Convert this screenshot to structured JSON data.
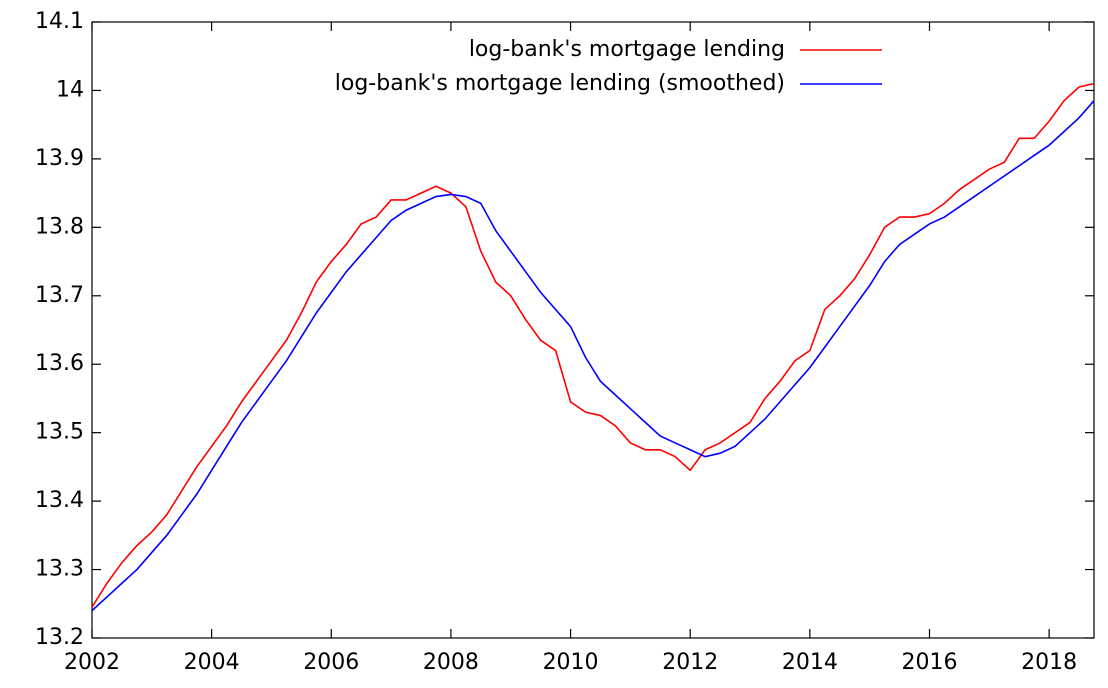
{
  "chart_data": {
    "type": "line",
    "x": [
      2002,
      2002.25,
      2002.5,
      2002.75,
      2003,
      2003.25,
      2003.5,
      2003.75,
      2004,
      2004.25,
      2004.5,
      2004.75,
      2005,
      2005.25,
      2005.5,
      2005.75,
      2006,
      2006.25,
      2006.5,
      2006.75,
      2007,
      2007.25,
      2007.5,
      2007.75,
      2008,
      2008.25,
      2008.5,
      2008.75,
      2009,
      2009.25,
      2009.5,
      2009.75,
      2010,
      2010.25,
      2010.5,
      2010.75,
      2011,
      2011.25,
      2011.5,
      2011.75,
      2012,
      2012.25,
      2012.5,
      2012.75,
      2013,
      2013.25,
      2013.5,
      2013.75,
      2014,
      2014.25,
      2014.5,
      2014.75,
      2015,
      2015.25,
      2015.5,
      2015.75,
      2016,
      2016.25,
      2016.5,
      2016.75,
      2017,
      2017.25,
      2017.5,
      2017.75,
      2018,
      2018.25,
      2018.5,
      2018.75
    ],
    "series": [
      {
        "name": "log-bank's mortgage lending",
        "color": "#ff0000",
        "values": [
          13.245,
          13.28,
          13.31,
          13.335,
          13.355,
          13.38,
          13.415,
          13.45,
          13.48,
          13.51,
          13.545,
          13.575,
          13.605,
          13.635,
          13.675,
          13.72,
          13.75,
          13.775,
          13.805,
          13.815,
          13.84,
          13.84,
          13.85,
          13.86,
          13.85,
          13.83,
          13.765,
          13.72,
          13.7,
          13.665,
          13.635,
          13.62,
          13.545,
          13.53,
          13.525,
          13.51,
          13.485,
          13.475,
          13.475,
          13.465,
          13.445,
          13.475,
          13.485,
          13.5,
          13.515,
          13.55,
          13.575,
          13.605,
          13.62,
          13.68,
          13.7,
          13.725,
          13.76,
          13.8,
          13.815,
          13.815,
          13.82,
          13.835,
          13.855,
          13.87,
          13.885,
          13.895,
          13.93,
          13.93,
          13.955,
          13.985,
          14.005,
          14.01
        ]
      },
      {
        "name": "log-bank's mortgage lending (smoothed)",
        "color": "#0000ff",
        "values": [
          13.24,
          13.26,
          13.28,
          13.3,
          13.325,
          13.35,
          13.38,
          13.41,
          13.445,
          13.48,
          13.515,
          13.545,
          13.575,
          13.605,
          13.64,
          13.675,
          13.705,
          13.735,
          13.76,
          13.785,
          13.81,
          13.825,
          13.835,
          13.845,
          13.848,
          13.845,
          13.835,
          13.795,
          13.765,
          13.735,
          13.705,
          13.68,
          13.655,
          13.61,
          13.575,
          13.555,
          13.535,
          13.515,
          13.495,
          13.485,
          13.475,
          13.465,
          13.47,
          13.48,
          13.5,
          13.52,
          13.545,
          13.57,
          13.595,
          13.625,
          13.655,
          13.685,
          13.715,
          13.75,
          13.775,
          13.79,
          13.805,
          13.815,
          13.83,
          13.845,
          13.86,
          13.875,
          13.89,
          13.905,
          13.92,
          13.94,
          13.96,
          13.985
        ]
      }
    ],
    "xlim": [
      2002,
      2018.75
    ],
    "ylim": [
      13.2,
      14.1
    ],
    "xticks": [
      2002,
      2004,
      2006,
      2008,
      2010,
      2012,
      2014,
      2016,
      2018
    ],
    "yticks": [
      13.2,
      13.3,
      13.4,
      13.5,
      13.6,
      13.7,
      13.8,
      13.9,
      14,
      14.1
    ],
    "legend": "top-right"
  }
}
